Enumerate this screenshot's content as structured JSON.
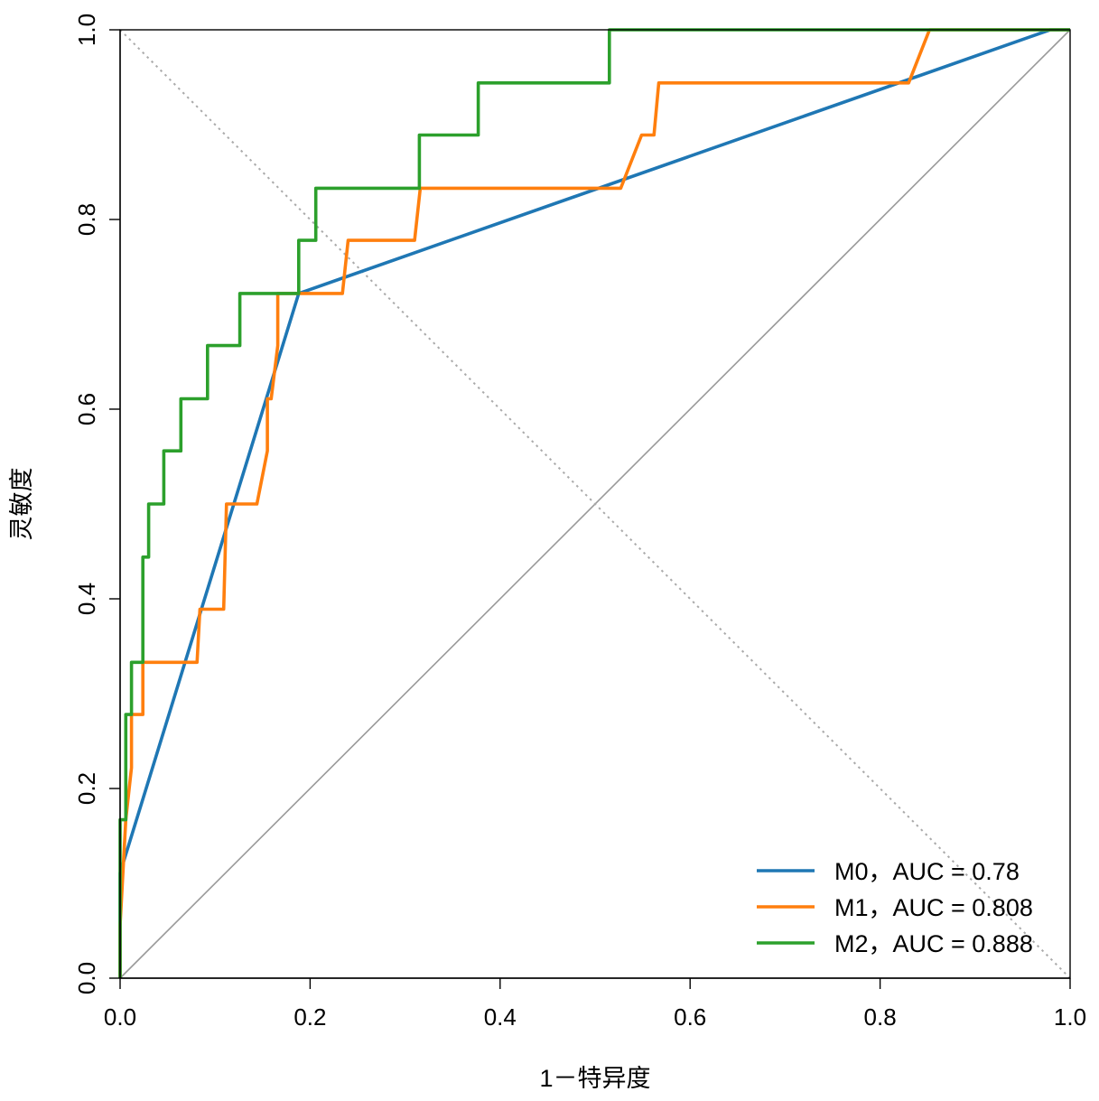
{
  "chart_data": {
    "type": "line",
    "title": "",
    "xlabel": "1－特异度",
    "ylabel": "灵敏度",
    "xlim": [
      0,
      1
    ],
    "ylim": [
      0,
      1
    ],
    "xticks": [
      "0.0",
      "0.2",
      "0.4",
      "0.6",
      "0.8",
      "1.0"
    ],
    "yticks": [
      "0.0",
      "0.2",
      "0.4",
      "0.6",
      "0.8",
      "1.0"
    ],
    "grid": false,
    "legend_position": "bottom-right",
    "reference_lines": [
      {
        "name": "chance-diagonal",
        "from": [
          0,
          0
        ],
        "to": [
          1,
          1
        ],
        "color": "#999999",
        "style": "solid"
      },
      {
        "name": "anti-diagonal",
        "from": [
          0,
          1
        ],
        "to": [
          1,
          0
        ],
        "color": "#aaaaaa",
        "style": "dotted"
      }
    ],
    "series": [
      {
        "name": "M0",
        "label": "M0，AUC = 0.78",
        "auc": 0.78,
        "color": "#1f77b4",
        "points": [
          [
            0,
            0
          ],
          [
            0,
            0.111
          ],
          [
            0.188,
            0.722
          ],
          [
            0.979,
            1
          ],
          [
            1,
            1
          ]
        ]
      },
      {
        "name": "M1",
        "label": "M1，AUC = 0.808",
        "auc": 0.808,
        "color": "#ff7f0e",
        "points": [
          [
            0,
            0
          ],
          [
            0,
            0.056
          ],
          [
            0.006,
            0.167
          ],
          [
            0.012,
            0.222
          ],
          [
            0.012,
            0.278
          ],
          [
            0.024,
            0.278
          ],
          [
            0.024,
            0.333
          ],
          [
            0.081,
            0.333
          ],
          [
            0.084,
            0.389
          ],
          [
            0.109,
            0.389
          ],
          [
            0.112,
            0.5
          ],
          [
            0.144,
            0.5
          ],
          [
            0.155,
            0.556
          ],
          [
            0.155,
            0.611
          ],
          [
            0.159,
            0.611
          ],
          [
            0.166,
            0.667
          ],
          [
            0.166,
            0.722
          ],
          [
            0.234,
            0.722
          ],
          [
            0.24,
            0.778
          ],
          [
            0.31,
            0.778
          ],
          [
            0.316,
            0.833
          ],
          [
            0.527,
            0.833
          ],
          [
            0.549,
            0.889
          ],
          [
            0.562,
            0.889
          ],
          [
            0.567,
            0.944
          ],
          [
            0.83,
            0.944
          ],
          [
            0.852,
            1
          ],
          [
            1,
            1
          ]
        ]
      },
      {
        "name": "M2",
        "label": "M2，AUC = 0.888",
        "auc": 0.888,
        "color": "#2ca02c",
        "points": [
          [
            0,
            0
          ],
          [
            0,
            0.167
          ],
          [
            0.006,
            0.167
          ],
          [
            0.006,
            0.278
          ],
          [
            0.012,
            0.278
          ],
          [
            0.012,
            0.333
          ],
          [
            0.024,
            0.333
          ],
          [
            0.024,
            0.444
          ],
          [
            0.03,
            0.444
          ],
          [
            0.03,
            0.5
          ],
          [
            0.046,
            0.5
          ],
          [
            0.046,
            0.556
          ],
          [
            0.064,
            0.556
          ],
          [
            0.064,
            0.611
          ],
          [
            0.092,
            0.611
          ],
          [
            0.092,
            0.667
          ],
          [
            0.126,
            0.667
          ],
          [
            0.126,
            0.722
          ],
          [
            0.188,
            0.722
          ],
          [
            0.188,
            0.778
          ],
          [
            0.206,
            0.778
          ],
          [
            0.206,
            0.833
          ],
          [
            0.315,
            0.833
          ],
          [
            0.315,
            0.889
          ],
          [
            0.377,
            0.889
          ],
          [
            0.377,
            0.944
          ],
          [
            0.515,
            0.944
          ],
          [
            0.515,
            1
          ],
          [
            1,
            1
          ]
        ]
      }
    ]
  }
}
